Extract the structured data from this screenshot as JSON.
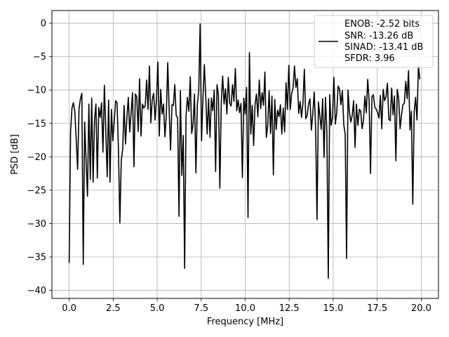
{
  "chart_data": {
    "type": "line",
    "title": "",
    "xlabel": "Frequency [MHz]",
    "ylabel": "PSD [dB]",
    "xlim": [
      -0.98,
      20.98
    ],
    "ylim": [
      -41.2,
      1.9
    ],
    "grid": true,
    "legend_position": "upper right",
    "xticks": [
      0.0,
      2.5,
      5.0,
      7.5,
      10.0,
      12.5,
      15.0,
      17.5,
      20.0
    ],
    "xtick_labels": [
      "0.0",
      "2.5",
      "5.0",
      "7.5",
      "10.0",
      "12.5",
      "15.0",
      "17.5",
      "20.0"
    ],
    "yticks": [
      0,
      -5,
      -10,
      -15,
      -20,
      -25,
      -30,
      -35,
      -40
    ],
    "ytick_labels": [
      "0",
      "−5",
      "−10",
      "−15",
      "−20",
      "−25",
      "−30",
      "−35",
      "−40"
    ],
    "legend_lines": [
      "ENOB: -2.52 bits",
      "SNR: -13.26 dB",
      "SINAD: -13.41 dB",
      "SFDR: 3.96"
    ],
    "series": [
      {
        "color": "#000000",
        "x": [
          0.0,
          0.08,
          0.16,
          0.24,
          0.32,
          0.4,
          0.48,
          0.56,
          0.64,
          0.72,
          0.8,
          0.88,
          0.96,
          1.04,
          1.12,
          1.2,
          1.28,
          1.36,
          1.44,
          1.52,
          1.6,
          1.68,
          1.76,
          1.84,
          1.92,
          2.0,
          2.08,
          2.16,
          2.24,
          2.32,
          2.4,
          2.48,
          2.56,
          2.64,
          2.72,
          2.8,
          2.88,
          2.96,
          3.04,
          3.12,
          3.2,
          3.28,
          3.36,
          3.44,
          3.52,
          3.6,
          3.68,
          3.76,
          3.84,
          3.92,
          4.0,
          4.08,
          4.16,
          4.24,
          4.32,
          4.4,
          4.48,
          4.56,
          4.64,
          4.72,
          4.8,
          4.88,
          4.96,
          5.04,
          5.12,
          5.2,
          5.28,
          5.36,
          5.44,
          5.52,
          5.6,
          5.68,
          5.76,
          5.84,
          5.92,
          6.0,
          6.08,
          6.16,
          6.24,
          6.32,
          6.4,
          6.48,
          6.56,
          6.64,
          6.72,
          6.8,
          6.88,
          6.96,
          7.04,
          7.12,
          7.2,
          7.28,
          7.36,
          7.44,
          7.52,
          7.6,
          7.68,
          7.76,
          7.84,
          7.92,
          8.0,
          8.08,
          8.16,
          8.24,
          8.32,
          8.4,
          8.48,
          8.56,
          8.64,
          8.72,
          8.8,
          8.88,
          8.96,
          9.04,
          9.12,
          9.2,
          9.28,
          9.36,
          9.44,
          9.52,
          9.6,
          9.68,
          9.76,
          9.84,
          9.92,
          10.0,
          10.08,
          10.16,
          10.24,
          10.32,
          10.4,
          10.48,
          10.56,
          10.64,
          10.72,
          10.8,
          10.88,
          10.96,
          11.04,
          11.12,
          11.2,
          11.28,
          11.36,
          11.44,
          11.52,
          11.6,
          11.68,
          11.76,
          11.84,
          11.92,
          12.0,
          12.08,
          12.16,
          12.24,
          12.32,
          12.4,
          12.48,
          12.56,
          12.64,
          12.72,
          12.8,
          12.88,
          12.96,
          13.04,
          13.12,
          13.2,
          13.28,
          13.36,
          13.44,
          13.52,
          13.6,
          13.68,
          13.76,
          13.84,
          13.92,
          14.0,
          14.08,
          14.16,
          14.24,
          14.32,
          14.4,
          14.48,
          14.56,
          14.64,
          14.72,
          14.8,
          14.88,
          14.96,
          15.04,
          15.12,
          15.2,
          15.28,
          15.36,
          15.44,
          15.52,
          15.6,
          15.68,
          15.76,
          15.84,
          15.92,
          16.0,
          16.08,
          16.16,
          16.24,
          16.32,
          16.4,
          16.48,
          16.56,
          16.64,
          16.72,
          16.8,
          16.88,
          16.96,
          17.04,
          17.12,
          17.2,
          17.28,
          17.36,
          17.44,
          17.52,
          17.6,
          17.68,
          17.76,
          17.84,
          17.92,
          18.0,
          18.08,
          18.16,
          18.24,
          18.32,
          18.4,
          18.48,
          18.56,
          18.64,
          18.72,
          18.8,
          18.88,
          18.96,
          19.04,
          19.12,
          19.2,
          19.28,
          19.36,
          19.44,
          19.52,
          19.6,
          19.68,
          19.76,
          19.84,
          19.92
        ],
        "y": [
          -35.9,
          -16.2,
          -12.7,
          -11.9,
          -13.2,
          -17.4,
          -21.9,
          -12.8,
          -11.3,
          -10.5,
          -36.1,
          -14.8,
          -20.5,
          -25.9,
          -12.1,
          -23.4,
          -11.2,
          -23.8,
          -14.5,
          -12.1,
          -23.2,
          -12.6,
          -14.1,
          -11.9,
          -19.3,
          -9.3,
          -16.0,
          -23.0,
          -11.5,
          -23.8,
          -12.9,
          -17.6,
          -14.7,
          -11.6,
          -11.9,
          -18.9,
          -29.9,
          -20.5,
          -18.9,
          -12.3,
          -18.1,
          -14.1,
          -11.1,
          -16.3,
          -13.4,
          -10.4,
          -21.5,
          -10.6,
          -11.0,
          -16.2,
          -8.3,
          -16.9,
          -12.1,
          -12.7,
          -12.4,
          -8.5,
          -12.9,
          -6.4,
          -14.9,
          -11.4,
          -10.5,
          -14.5,
          -11.3,
          -5.8,
          -16.9,
          -9.9,
          -13.6,
          -12.1,
          -17.0,
          -13.7,
          -5.9,
          -13.0,
          -19.0,
          -12.2,
          -12.3,
          -9.2,
          -13.8,
          -14.2,
          -28.9,
          -10.1,
          -22.8,
          -16.8,
          -36.7,
          -13.8,
          -11.1,
          -13.2,
          -8.0,
          -16.5,
          -15.1,
          -10.6,
          -22.4,
          -12.2,
          -10.2,
          -0.1,
          -17.6,
          -11.2,
          -6.2,
          -11.1,
          -16.6,
          -11.3,
          -17.1,
          -11.2,
          -13.1,
          -10.0,
          -22.2,
          -9.2,
          -10.8,
          -24.7,
          -11.9,
          -7.9,
          -12.1,
          -9.8,
          -13.6,
          -8.1,
          -12.0,
          -12.4,
          -9.2,
          -11.7,
          -6.8,
          -13.1,
          -11.5,
          -13.4,
          -12.0,
          -23.1,
          -11.2,
          -13.6,
          -9.6,
          -29.1,
          -4.4,
          -16.6,
          -12.3,
          -18.3,
          -12.1,
          -10.6,
          -14.0,
          -8.5,
          -12.8,
          -10.4,
          -12.3,
          -7.3,
          -17.1,
          -15.3,
          -10.1,
          -16.5,
          -10.9,
          -22.7,
          -11.4,
          -15.9,
          -13.0,
          -14.0,
          -12.2,
          -16.6,
          -12.7,
          -16.3,
          -8.9,
          -12.9,
          -6.3,
          -12.9,
          -10.5,
          -9.7,
          -6.4,
          -9.6,
          -8.3,
          -13.5,
          -11.7,
          -14.1,
          -12.0,
          -6.9,
          -14.3,
          -13.8,
          -12.1,
          -11.3,
          -16.0,
          -13.6,
          -10.3,
          -15.6,
          -29.4,
          -11.8,
          -13.8,
          -15.9,
          -11.3,
          -20.1,
          -11.1,
          -16.3,
          -38.2,
          -10.7,
          -15.3,
          -14.1,
          -8.1,
          -15.1,
          -13.4,
          -9.4,
          -9.9,
          -12.2,
          -10.1,
          -15.2,
          -16.6,
          -35.2,
          -10.0,
          -13.3,
          -14.8,
          -13.8,
          -11.6,
          -18.6,
          -12.1,
          -15.3,
          -12.9,
          -13.1,
          -15.8,
          -14.5,
          -10.9,
          -13.4,
          -8.4,
          -11.7,
          -22.5,
          -11.0,
          -10.7,
          -12.5,
          -12.9,
          -13.3,
          -14.2,
          -10.8,
          -15.8,
          -9.9,
          -11.6,
          -11.0,
          -9.0,
          -14.4,
          -14.6,
          -9.7,
          -13.7,
          -10.9,
          -20.6,
          -9.9,
          -11.3,
          -15.8,
          -13.7,
          -12.2,
          -12.0,
          -8.7,
          -11.3,
          -7.1,
          -16.0,
          -13.2,
          -27.1,
          -13.3,
          -11.1,
          -14.5,
          -6.4,
          -8.4
        ]
      }
    ]
  }
}
